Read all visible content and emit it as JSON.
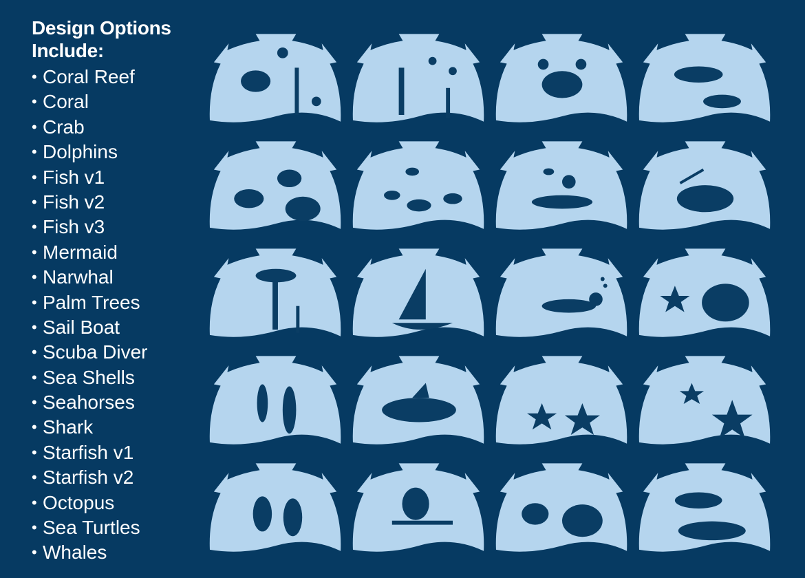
{
  "heading": {
    "line1": "Design Options",
    "line2": "Include:"
  },
  "bullet": "•",
  "designs": [
    "Coral Reef",
    "Coral",
    "Crab",
    "Dolphins",
    "Fish v1",
    "Fish v2",
    "Fish v3",
    "Mermaid",
    "Narwhal",
    "Palm Trees",
    "Sail Boat",
    "Scuba Diver",
    "Sea Shells",
    "Seahorses",
    "Shark",
    "Starfish v1",
    "Starfish v2",
    "Octopus",
    "Sea Turtles",
    "Whales"
  ],
  "colors": {
    "background": "#063a62",
    "stencil": "#b5d5ee",
    "silhouette": "#0a3d64",
    "text": "#ffffff"
  }
}
